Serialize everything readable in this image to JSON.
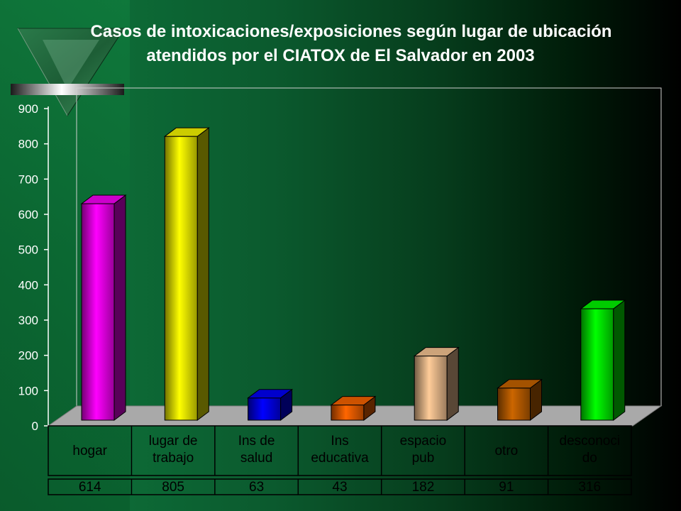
{
  "chart_data": {
    "type": "bar",
    "title": "Casos de intoxicaciones/exposiciones según lugar de ubicación",
    "subtitle": "atendidos por el CIATOX de El Salvador en 2003",
    "categories": [
      [
        "hogar"
      ],
      [
        "lugar de",
        "trabajo"
      ],
      [
        "Ins de",
        "salud"
      ],
      [
        "Ins",
        "educativa"
      ],
      [
        "espacio",
        "pub"
      ],
      [
        "otro"
      ],
      [
        "desconoci",
        "do"
      ]
    ],
    "values": [
      614,
      805,
      63,
      43,
      182,
      91,
      316
    ],
    "value_labels": [
      "614",
      "805",
      "63",
      "43",
      "182",
      "91",
      "316"
    ],
    "ylim": [
      0,
      900
    ],
    "yticks": [
      "0",
      "100",
      "200",
      "300",
      "400",
      "500",
      "600",
      "700",
      "800",
      "900"
    ],
    "grid": false,
    "legend": "none",
    "colors": [
      "#ff00ff",
      "#ffff00",
      "#0000ff",
      "#ff6600",
      "#ffcc99",
      "#cc6600",
      "#00ff00"
    ]
  }
}
